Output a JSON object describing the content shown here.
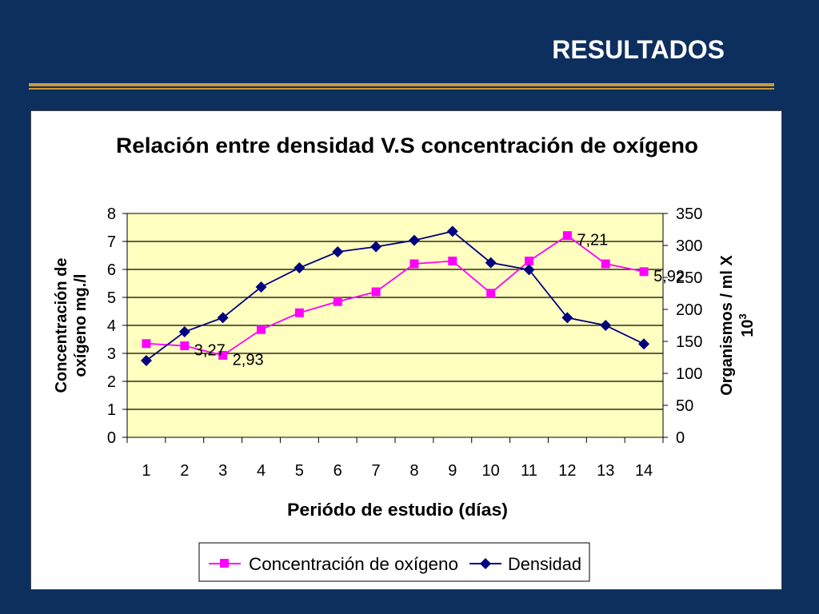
{
  "slide": {
    "title": "RESULTADOS"
  },
  "chart_data": {
    "type": "line",
    "title": "Relación entre densidad V.S concentración de oxígeno",
    "xlabel": "Periódo de estudio (días)",
    "ylabel": "Concentración de oxígeno mg./l",
    "ylabel_lines": [
      "Concentración de",
      "oxígeno mg./l"
    ],
    "y2label": "Organismos / ml X 10",
    "y2label_lines": [
      "Organismos / ml X",
      "10"
    ],
    "y2label_sup": "3",
    "categories": [
      "1",
      "2",
      "3",
      "4",
      "5",
      "6",
      "7",
      "8",
      "9",
      "10",
      "11",
      "12",
      "13",
      "14"
    ],
    "ylim": [
      0,
      8
    ],
    "y_ticks": [
      "0",
      "1",
      "2",
      "3",
      "4",
      "5",
      "6",
      "7",
      "8"
    ],
    "y2lim": [
      0,
      350
    ],
    "y2_ticks": [
      "0",
      "50",
      "100",
      "150",
      "200",
      "250",
      "300",
      "350"
    ],
    "series": [
      {
        "name": "Concentración de oxígeno",
        "axis": "left",
        "color": "#ff00ff",
        "marker": "square",
        "values": [
          3.35,
          3.27,
          2.93,
          3.85,
          4.45,
          4.85,
          5.2,
          6.2,
          6.3,
          5.15,
          6.3,
          7.21,
          6.2,
          5.92
        ]
      },
      {
        "name": "Densidad",
        "axis": "right",
        "color": "#000080",
        "marker": "diamond",
        "values": [
          120,
          165,
          187,
          235,
          265,
          290,
          298,
          308,
          322,
          273,
          262,
          187,
          175,
          146
        ]
      }
    ],
    "data_labels": [
      {
        "series": 0,
        "index": 1,
        "text": "3,27"
      },
      {
        "series": 0,
        "index": 2,
        "text": "2,93"
      },
      {
        "series": 0,
        "index": 11,
        "text": "7,21"
      },
      {
        "series": 0,
        "index": 13,
        "text": "5,92"
      }
    ],
    "plot_background": "#ffffc0",
    "grid": true,
    "legend_position": "bottom"
  }
}
